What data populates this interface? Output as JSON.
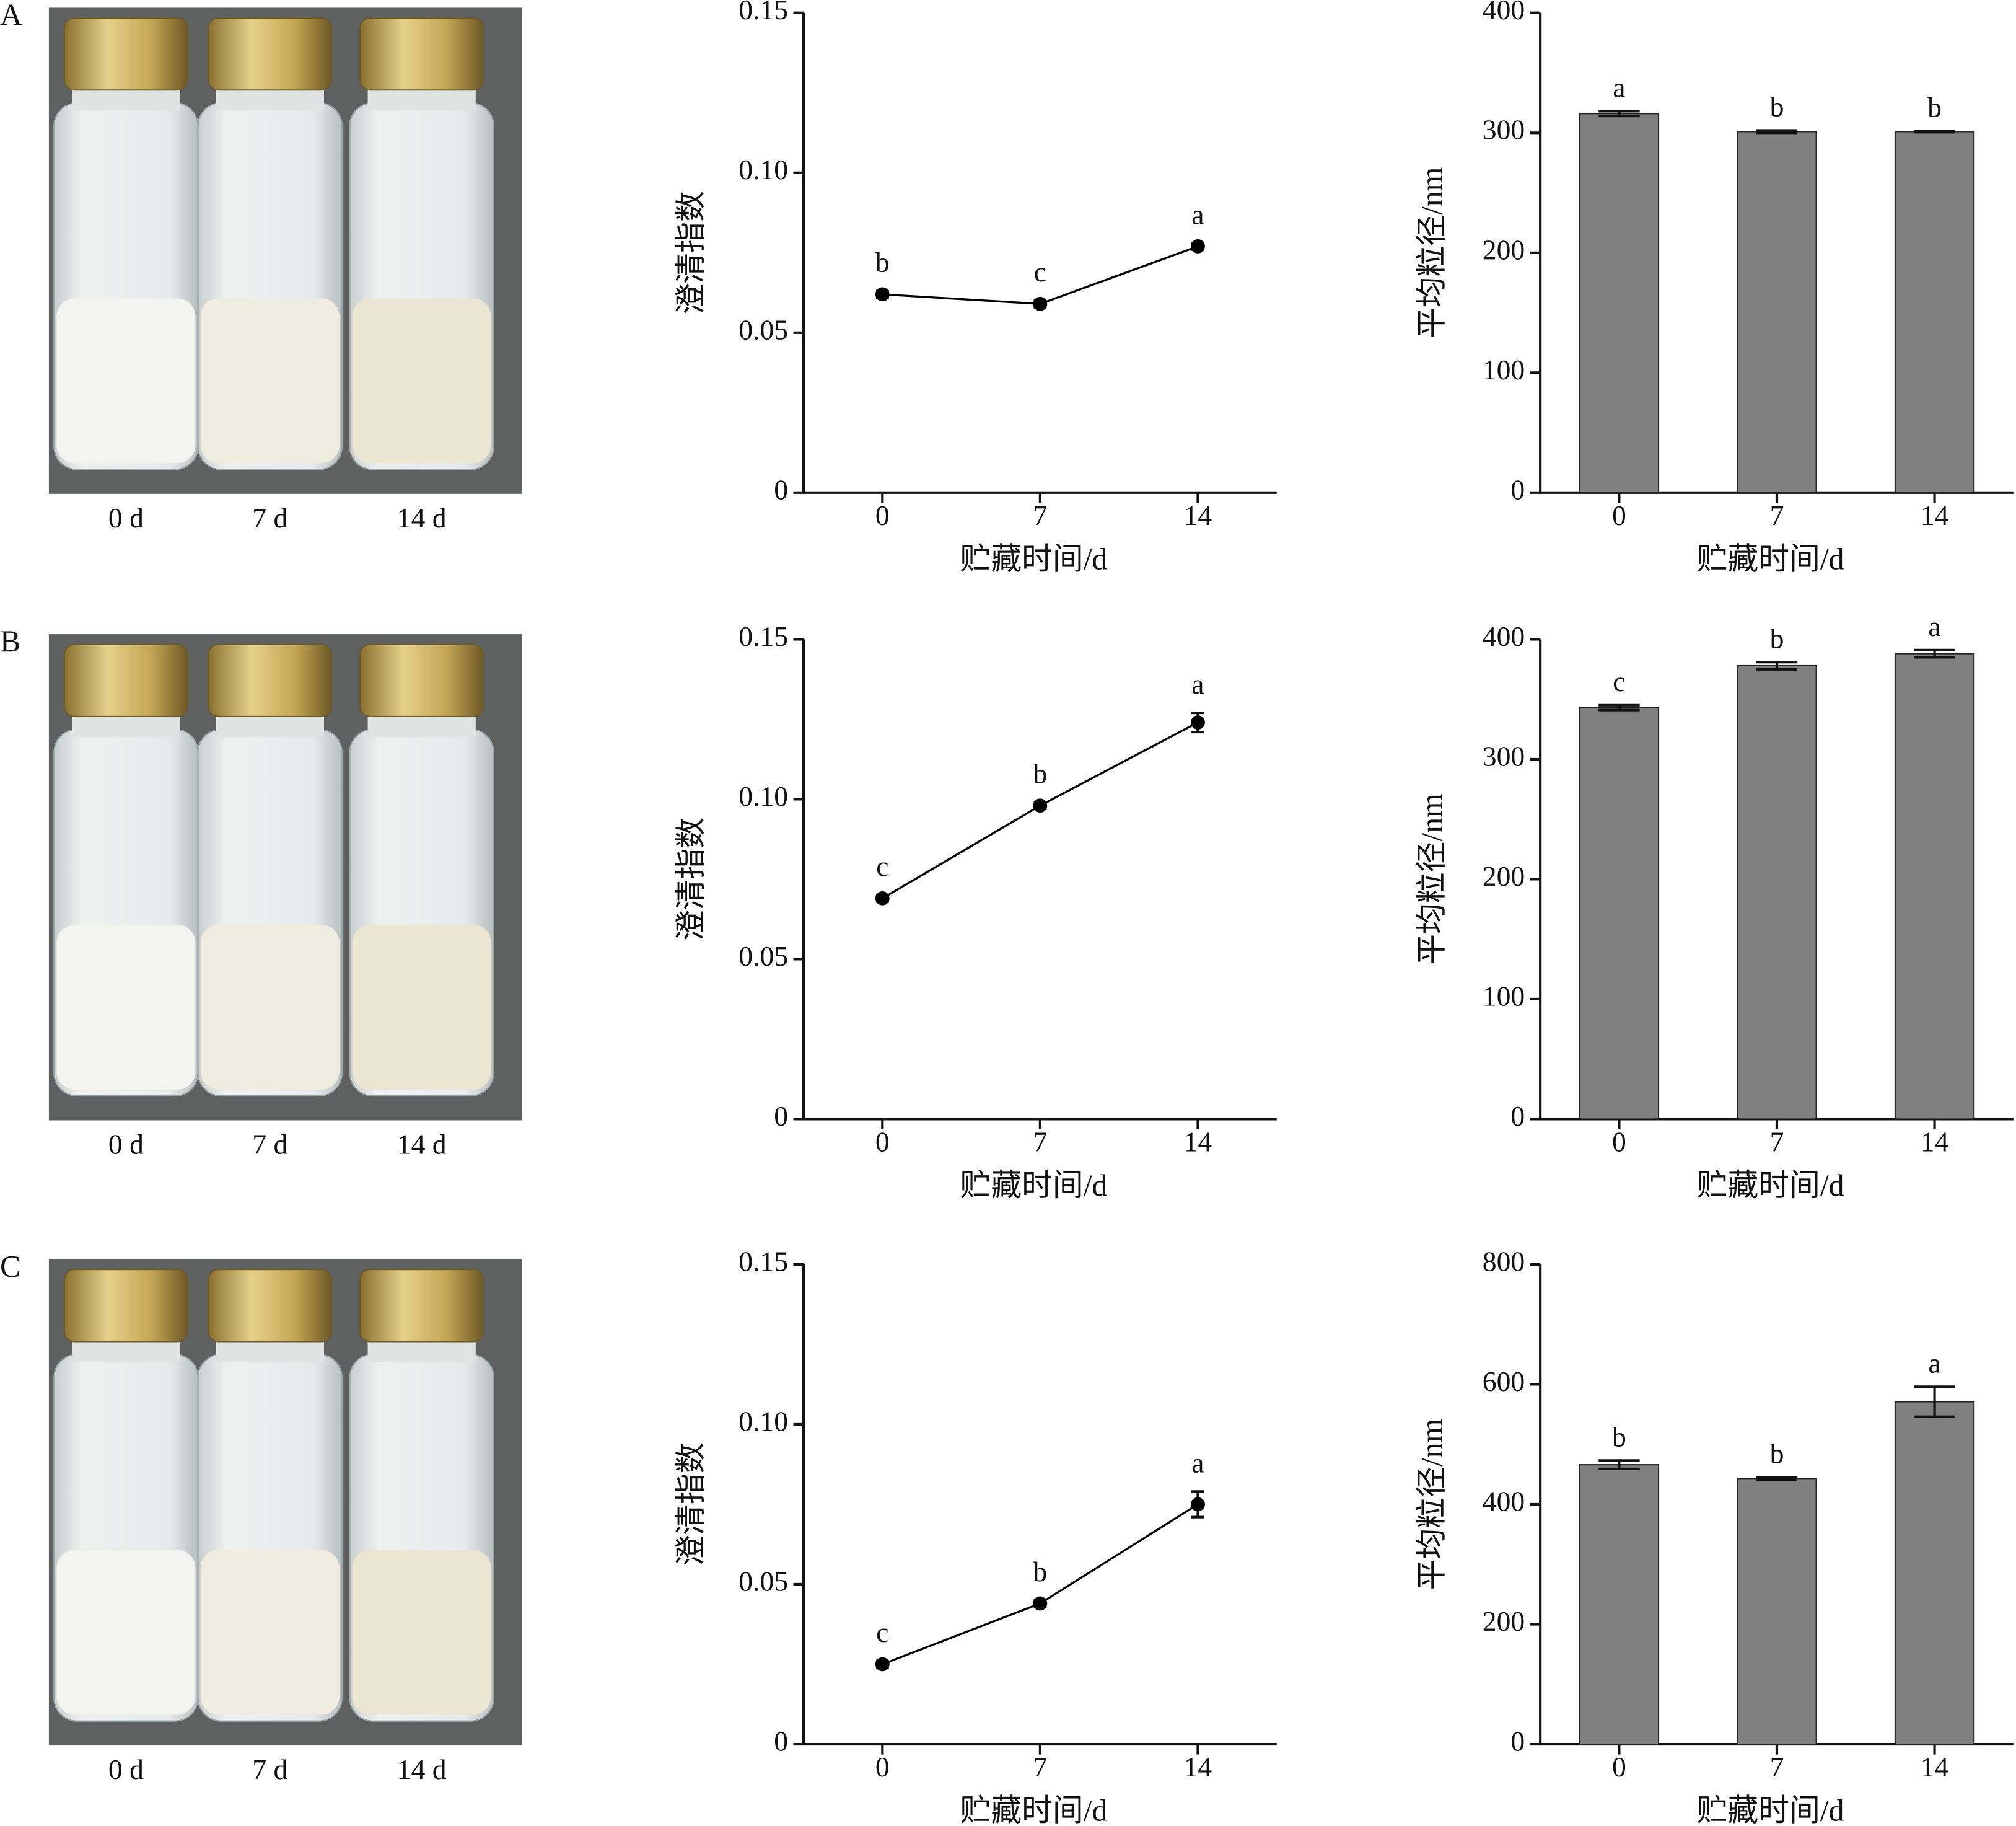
{
  "panels": [
    {
      "label": "A",
      "photo_labels": [
        "0 d",
        "7 d",
        "14 d"
      ]
    },
    {
      "label": "B",
      "photo_labels": [
        "0 d",
        "7 d",
        "14 d"
      ]
    },
    {
      "label": "C",
      "photo_labels": [
        "0 d",
        "7 d",
        "14 d"
      ]
    }
  ],
  "chart_data": [
    {
      "type": "line",
      "x_label": "贮藏时间/d",
      "y_label": "澄清指数",
      "x": [
        0,
        7,
        14
      ],
      "xlim": [
        -3.5,
        17.5
      ],
      "xticks": [
        0,
        7,
        14
      ],
      "ylim": [
        0,
        0.15
      ],
      "yticks": [
        0,
        0.05,
        {
          "value": 0.1,
          "label": "0.10"
        },
        0.15
      ],
      "color": "#000000",
      "values": [
        0.062,
        0.059,
        0.077
      ],
      "errors": [
        0.001,
        0.001,
        0.001
      ],
      "significance": [
        "b",
        "c",
        "a"
      ]
    },
    {
      "type": "bar",
      "x_label": "贮藏时间/d",
      "y_label": "平均粒径/nm",
      "categories": [
        "0",
        "7",
        "14"
      ],
      "ylim": [
        0,
        400
      ],
      "yticks": [
        0,
        100,
        200,
        300,
        400
      ],
      "color": "#808080",
      "values": [
        316,
        301,
        301
      ],
      "errors": [
        2,
        1,
        0.5
      ],
      "significance": [
        "a",
        "b",
        "b"
      ]
    },
    {
      "type": "line",
      "x_label": "贮藏时间/d",
      "y_label": "澄清指数",
      "x": [
        0,
        7,
        14
      ],
      "xlim": [
        -3.5,
        17.5
      ],
      "xticks": [
        0,
        7,
        14
      ],
      "ylim": [
        0,
        0.15
      ],
      "yticks": [
        0,
        0.05,
        {
          "value": 0.1,
          "label": "0.10"
        },
        0.15
      ],
      "color": "#000000",
      "values": [
        0.069,
        0.098,
        0.124
      ],
      "errors": [
        0.001,
        0.001,
        0.003
      ],
      "significance": [
        "c",
        "b",
        "a"
      ]
    },
    {
      "type": "bar",
      "x_label": "贮藏时间/d",
      "y_label": "平均粒径/nm",
      "categories": [
        "0",
        "7",
        "14"
      ],
      "ylim": [
        0,
        400
      ],
      "yticks": [
        0,
        100,
        200,
        300,
        400
      ],
      "color": "#808080",
      "values": [
        343,
        378,
        388
      ],
      "errors": [
        2,
        3,
        3
      ],
      "significance": [
        "c",
        "b",
        "a"
      ]
    },
    {
      "type": "line",
      "x_label": "贮藏时间/d",
      "y_label": "澄清指数",
      "x": [
        0,
        7,
        14
      ],
      "xlim": [
        -3.5,
        17.5
      ],
      "xticks": [
        0,
        7,
        14
      ],
      "ylim": [
        0,
        0.15
      ],
      "yticks": [
        0,
        0.05,
        {
          "value": 0.1,
          "label": "0.10"
        },
        0.15
      ],
      "color": "#000000",
      "values": [
        0.025,
        0.044,
        0.075
      ],
      "errors": [
        0.001,
        0.001,
        0.004
      ],
      "significance": [
        "c",
        "b",
        "a"
      ]
    },
    {
      "type": "bar",
      "x_label": "贮藏时间/d",
      "y_label": "平均粒径/nm",
      "categories": [
        "0",
        "7",
        "14"
      ],
      "ylim": [
        0,
        800
      ],
      "yticks": [
        0,
        200,
        400,
        600,
        800
      ],
      "color": "#808080",
      "values": [
        466,
        443,
        571
      ],
      "errors": [
        7,
        2,
        25
      ],
      "significance": [
        "b",
        "b",
        "a"
      ]
    }
  ]
}
